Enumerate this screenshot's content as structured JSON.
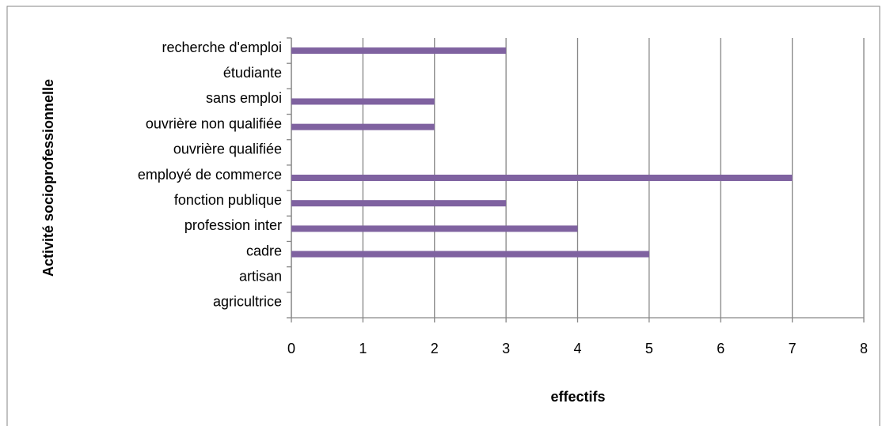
{
  "chart_data": {
    "type": "bar",
    "orientation": "horizontal",
    "x_label": "effectifs",
    "y_label": "Activité socioprofessionnelle",
    "categories": [
      "agricultrice",
      "artisan",
      "cadre",
      "profession inter",
      "fonction publique",
      "employé de commerce",
      "ouvrière qualifiée",
      "ouvrière non qualifiée",
      "sans emploi",
      "étudiante",
      "recherche d'emploi"
    ],
    "values": [
      0,
      0,
      5,
      4,
      3,
      7,
      0,
      2,
      2,
      0,
      3
    ],
    "color": "#7f62a0",
    "xlim": [
      0,
      8
    ],
    "xticks": [
      0,
      1,
      2,
      3,
      4,
      5,
      6,
      7,
      8
    ],
    "grid": true
  }
}
